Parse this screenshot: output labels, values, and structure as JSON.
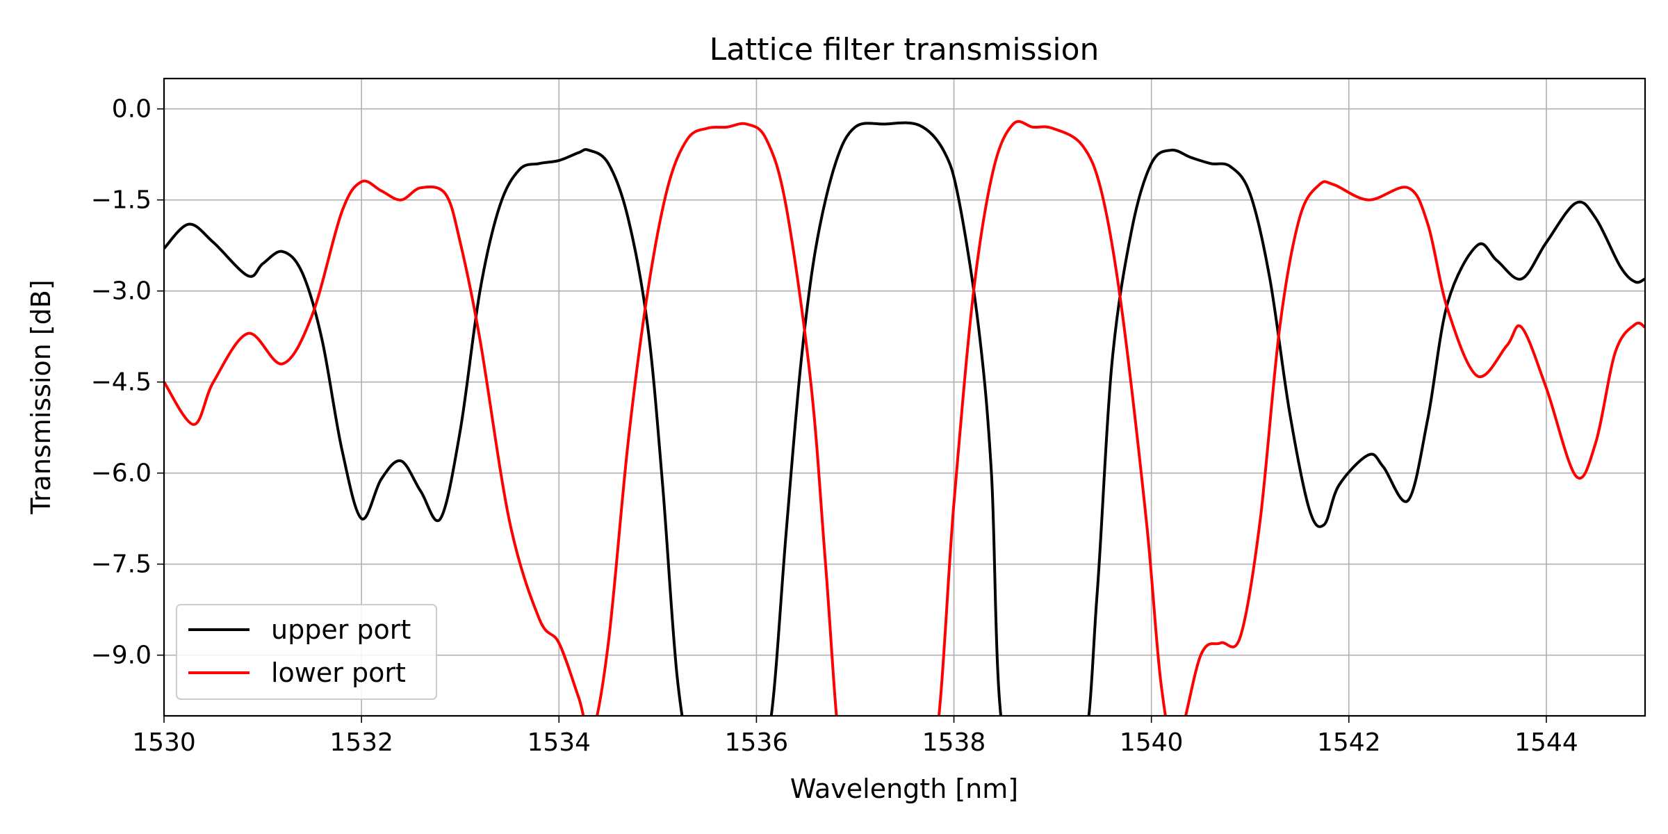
{
  "chart_data": {
    "type": "line",
    "title": "Lattice filter transmission",
    "xlabel": "Wavelength [nm]",
    "ylabel": "Transmission [dB]",
    "xlim": [
      1530,
      1545
    ],
    "ylim": [
      -10.0,
      0.5
    ],
    "grid": true,
    "legend_location": "lower-left",
    "xticks": [
      1530,
      1532,
      1534,
      1536,
      1538,
      1540,
      1542,
      1544
    ],
    "xtick_labels": [
      "1530",
      "1532",
      "1534",
      "1536",
      "1538",
      "1540",
      "1542",
      "1544"
    ],
    "yticks": [
      0.0,
      -1.5,
      -3.0,
      -4.5,
      -6.0,
      -7.5,
      -9.0
    ],
    "ytick_labels": [
      "0.0",
      "−1.5",
      "−3.0",
      "−4.5",
      "−6.0",
      "−7.5",
      "−9.0"
    ],
    "series": [
      {
        "name": "upper port",
        "color": "#000000",
        "x": [
          1530.0,
          1530.25,
          1530.5,
          1530.85,
          1531.0,
          1531.2,
          1531.4,
          1531.6,
          1531.8,
          1532.0,
          1532.2,
          1532.4,
          1532.6,
          1532.8,
          1533.0,
          1533.2,
          1533.4,
          1533.6,
          1533.8,
          1534.0,
          1534.2,
          1534.3,
          1534.5,
          1534.7,
          1534.9,
          1535.05,
          1535.2,
          1535.35,
          1535.6,
          1536.0,
          1536.15,
          1536.3,
          1536.45,
          1536.6,
          1536.8,
          1537.0,
          1537.3,
          1537.65,
          1537.9,
          1538.05,
          1538.25,
          1538.38,
          1538.5,
          1538.9,
          1539.3,
          1539.45,
          1539.6,
          1539.8,
          1540.0,
          1540.2,
          1540.4,
          1540.6,
          1540.8,
          1541.0,
          1541.2,
          1541.4,
          1541.6,
          1541.75,
          1541.9,
          1542.2,
          1542.35,
          1542.6,
          1542.8,
          1543.0,
          1543.3,
          1543.5,
          1543.75,
          1544.0,
          1544.3,
          1544.5,
          1544.75,
          1544.9,
          1545.0
        ],
        "y": [
          -2.3,
          -1.9,
          -2.2,
          -2.75,
          -2.55,
          -2.35,
          -2.7,
          -3.8,
          -5.6,
          -6.75,
          -6.1,
          -5.8,
          -6.3,
          -6.75,
          -5.3,
          -3.0,
          -1.6,
          -1.0,
          -0.9,
          -0.85,
          -0.72,
          -0.68,
          -0.9,
          -1.8,
          -3.6,
          -6.2,
          -9.4,
          -10.6,
          -10.6,
          -10.6,
          -10.0,
          -7.0,
          -4.2,
          -2.3,
          -0.9,
          -0.3,
          -0.25,
          -0.27,
          -0.7,
          -1.5,
          -3.6,
          -6.0,
          -10.3,
          -10.6,
          -10.6,
          -8.0,
          -4.2,
          -2.0,
          -0.9,
          -0.68,
          -0.8,
          -0.9,
          -0.95,
          -1.4,
          -2.8,
          -5.0,
          -6.6,
          -6.85,
          -6.2,
          -5.7,
          -5.9,
          -6.45,
          -5.1,
          -3.2,
          -2.25,
          -2.5,
          -2.8,
          -2.2,
          -1.55,
          -1.8,
          -2.6,
          -2.85,
          -2.8
        ]
      },
      {
        "name": "lower port",
        "color": "#ff0000",
        "x": [
          1530.0,
          1530.3,
          1530.5,
          1530.85,
          1531.2,
          1531.5,
          1531.8,
          1532.0,
          1532.2,
          1532.4,
          1532.6,
          1532.85,
          1533.0,
          1533.2,
          1533.5,
          1533.8,
          1534.0,
          1534.2,
          1534.33,
          1534.5,
          1534.7,
          1534.9,
          1535.1,
          1535.3,
          1535.5,
          1535.7,
          1535.9,
          1536.1,
          1536.3,
          1536.55,
          1536.7,
          1536.85,
          1537.0,
          1537.5,
          1537.8,
          1538.0,
          1538.2,
          1538.4,
          1538.6,
          1538.8,
          1539.0,
          1539.3,
          1539.5,
          1539.7,
          1539.95,
          1540.1,
          1540.25,
          1540.5,
          1540.7,
          1540.9,
          1541.1,
          1541.3,
          1541.5,
          1541.7,
          1541.85,
          1542.2,
          1542.6,
          1542.8,
          1543.0,
          1543.3,
          1543.6,
          1543.75,
          1544.0,
          1544.3,
          1544.5,
          1544.7,
          1544.9,
          1545.0
        ],
        "y": [
          -4.5,
          -5.2,
          -4.5,
          -3.7,
          -4.2,
          -3.4,
          -1.7,
          -1.2,
          -1.35,
          -1.5,
          -1.3,
          -1.4,
          -2.2,
          -3.8,
          -6.8,
          -8.4,
          -8.8,
          -9.7,
          -10.3,
          -8.8,
          -5.5,
          -3.0,
          -1.3,
          -0.5,
          -0.32,
          -0.3,
          -0.25,
          -0.5,
          -1.6,
          -4.5,
          -7.5,
          -10.6,
          -10.6,
          -10.6,
          -10.6,
          -6.5,
          -3.0,
          -1.0,
          -0.25,
          -0.3,
          -0.32,
          -0.6,
          -1.4,
          -3.3,
          -6.8,
          -9.5,
          -10.5,
          -9.0,
          -8.8,
          -8.7,
          -6.8,
          -3.6,
          -1.8,
          -1.25,
          -1.25,
          -1.5,
          -1.3,
          -1.9,
          -3.3,
          -4.4,
          -3.9,
          -3.6,
          -4.6,
          -6.05,
          -5.5,
          -4.0,
          -3.55,
          -3.6
        ]
      }
    ]
  }
}
